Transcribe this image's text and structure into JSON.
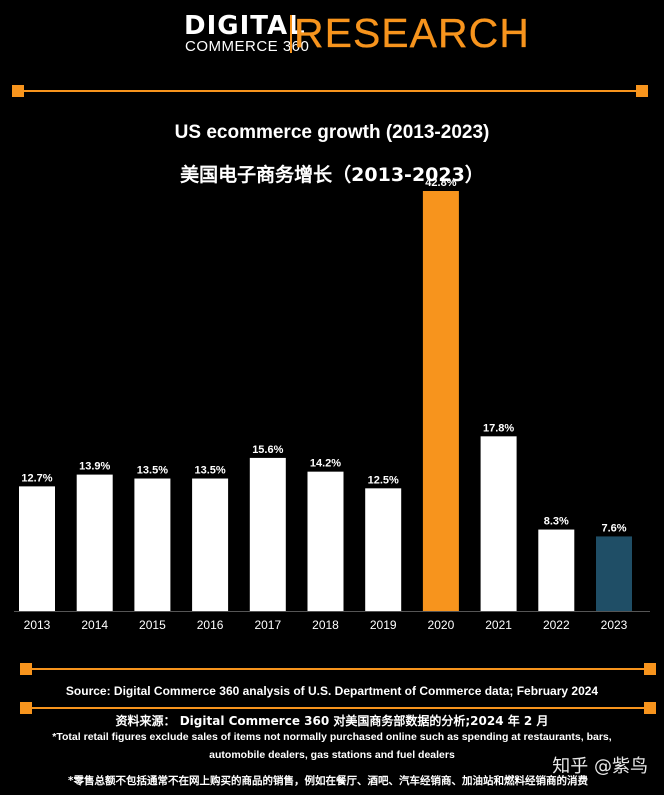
{
  "logo": {
    "digital": "DIGITAL",
    "sub": "COMMERCE 360",
    "research": "RESEARCH"
  },
  "colors": {
    "accent": "#f7941d",
    "bar_default": "#ffffff",
    "bar_2020": "#f7941d",
    "bar_2023": "#1f4e66",
    "background": "#000000"
  },
  "chart_data": {
    "type": "bar",
    "title": "US ecommerce growth  (2013-2023)",
    "subtitle": "美国电子商务增长（2013-2023）",
    "categories": [
      "2013",
      "2014",
      "2015",
      "2016",
      "2017",
      "2018",
      "2019",
      "2020",
      "2021",
      "2022",
      "2023"
    ],
    "values": [
      12.7,
      13.9,
      13.5,
      13.5,
      15.6,
      14.2,
      12.5,
      42.8,
      17.8,
      8.3,
      7.6
    ],
    "data_labels": [
      "12.7%",
      "13.9%",
      "13.5%",
      "13.5%",
      "15.6%",
      "14.2%",
      "12.5%",
      "42.8%",
      "17.8%",
      "8.3%",
      "7.6%"
    ],
    "ylim": [
      0,
      42.8
    ],
    "xlabel": "",
    "ylabel": "",
    "grid": false,
    "legend": "none",
    "highlight": {
      "2020": "#f7941d",
      "2023": "#1f4e66"
    }
  },
  "footer": {
    "source": "Source: Digital Commerce 360 analysis of U.S. Department of Commerce data; February 2024",
    "source_cn": "资料来源：  Digital Commerce 360 对美国商务部数据的分析;2024 年 2 月",
    "note_line1": "*Total retail figures exclude sales of items not normally purchased online such as spending at restaurants, bars,",
    "note_line2": "automobile dealers, gas stations and fuel dealers",
    "note_cn": "*零售总额不包括通常不在网上购买的商品的销售，例如在餐厅、酒吧、汽车经销商、加油站和燃料经销商的消费"
  },
  "watermark": "知乎 @紫鸟"
}
